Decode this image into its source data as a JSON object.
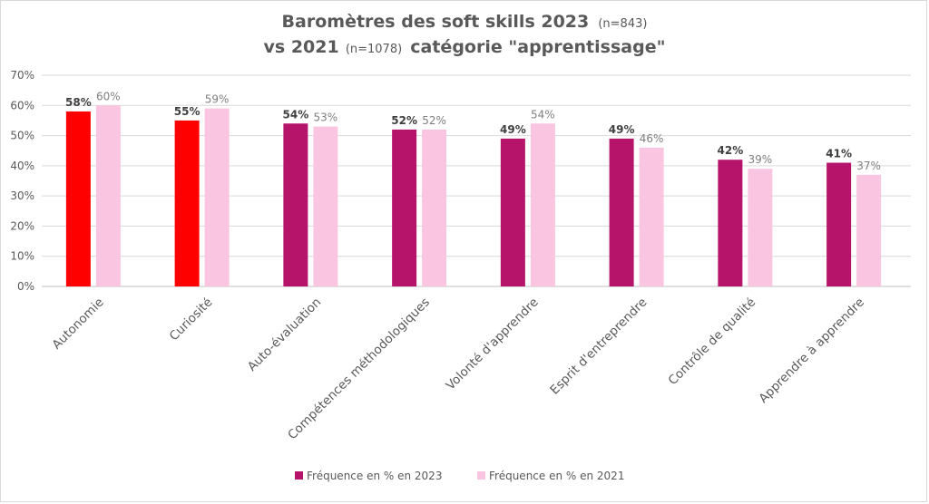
{
  "chart_data": {
    "type": "bar",
    "title": {
      "line1": "Baromètres des soft skills 2023",
      "line1_n": "(n=843)",
      "line2": "vs 2021",
      "line2_n": "(n=1078)",
      "line2_tail": "catégorie \"apprentissage\""
    },
    "categories": [
      "Autonomie",
      "Curiosité",
      "Auto-évaluation",
      "Compétences méthodologiques",
      "Volonté d'apprendre",
      "Esprit d'entreprendre",
      "Contrôle de qualité",
      "Apprendre à apprendre"
    ],
    "series": [
      {
        "name": "Fréquence en % en 2023",
        "values": [
          58,
          55,
          54,
          52,
          49,
          49,
          42,
          41
        ],
        "labels": [
          "58%",
          "55%",
          "54%",
          "52%",
          "49%",
          "49%",
          "42%",
          "41%"
        ],
        "color": "#b5146a",
        "highlight_color": "#ff0000",
        "highlighted_indices": [
          0,
          1
        ]
      },
      {
        "name": "Fréquence en % en 2021",
        "values": [
          60,
          59,
          53,
          52,
          54,
          46,
          39,
          37
        ],
        "labels": [
          "60%",
          "59%",
          "53%",
          "52%",
          "54%",
          "46%",
          "39%",
          "37%"
        ],
        "color": "#f9c5e0"
      }
    ],
    "y_ticks": [
      "0%",
      "10%",
      "20%",
      "30%",
      "40%",
      "50%",
      "60%",
      "70%"
    ],
    "ylim": [
      0,
      70
    ],
    "grid": true,
    "legend_position": "bottom"
  }
}
